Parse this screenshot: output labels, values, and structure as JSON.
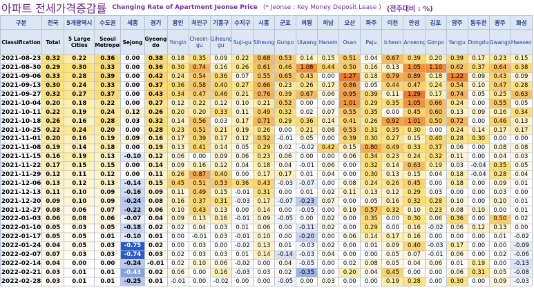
{
  "title": {
    "ko": "아파트 전세가격증감률",
    "en": "Changing Rate of Apartment Jeonse Price",
    "note": "(* Jeonse : Key Money Deposit Lease )",
    "unit": "(전주대비 : %)"
  },
  "table": {
    "header_ko": [
      "구분",
      "전국",
      "5개광역시",
      "수도권",
      "세종",
      "경기",
      "용인",
      "처인구",
      "기흥구",
      "수지구",
      "시흥",
      "군포",
      "의왕",
      "하남",
      "오산",
      "파주",
      "이천",
      "안성",
      "김포",
      "양주",
      "동두천",
      "광주",
      "화성"
    ],
    "header_en": [
      "Classification",
      "Total",
      "5 Large Cities",
      "Seoul Metropolitan",
      "Sejong",
      "Gyeonggi-do",
      "Yongin",
      "Cheoin-gu",
      "Giheung-gu",
      "Suji-gu",
      "Siheung",
      "Gunpo",
      "Uiwang",
      "Hanam",
      "Osan",
      "Paju",
      "Icheon",
      "Anseong",
      "Gimpo",
      "Yangju",
      "Dongducheon",
      "Gwangju",
      "Hwaseong"
    ],
    "rows": [
      [
        "2021-08-23",
        "0.32",
        "0.22",
        "0.36",
        "0.00",
        "0.38",
        "0.18",
        "0.35",
        "0.09",
        "0.22",
        "0.68",
        "0.53",
        "0.14",
        "0.15",
        "0.51",
        "0.04",
        "0.67",
        "0.39",
        "0.20",
        "0.39",
        "0.17",
        "0.23",
        "0.15"
      ],
      [
        "2021-08-30",
        "0.29",
        "0.30",
        "0.33",
        "0.00",
        "0.36",
        "0.30",
        "0.74",
        "0.16",
        "0.26",
        "0.61",
        "0.46",
        "1.08",
        "0.44",
        "0.50",
        "0.16",
        "0.13",
        "1.05",
        "1.10",
        "0.62",
        "0.37",
        "0.64",
        "0.38"
      ],
      [
        "2021-09-06",
        "0.33",
        "0.28",
        "0.39",
        "0.00",
        "0.42",
        "0.24",
        "0.54",
        "0.36",
        "0.07",
        "0.55",
        "0.65",
        "0.43",
        "0.00",
        "1.27",
        "0.18",
        "0.79",
        "0.89",
        "0.18",
        "1.22",
        "0.09",
        "0.43",
        "0.09"
      ],
      [
        "2021-09-13",
        "0.30",
        "0.24",
        "0.33",
        "0.00",
        "0.37",
        "0.36",
        "0.58",
        "0.40",
        "0.27",
        "0.66",
        "0.23",
        "0.26",
        "0.17",
        "0.86",
        "0.05",
        "0.44",
        "0.47",
        "0.24",
        "0.54",
        "0.10",
        "0.47",
        "0.28"
      ],
      [
        "2021-09-27",
        "0.32",
        "0.27",
        "0.37",
        "0.00",
        "0.43",
        "0.34",
        "0.47",
        "0.46",
        "0.21",
        "0.76",
        "0.39",
        "0.67",
        "0.06",
        "0.95",
        "0.39",
        "0.11",
        "1.29",
        "0.17",
        "0.74",
        "0.05",
        "0.25",
        "0.63"
      ],
      [
        "2021-10-04",
        "0.20",
        "0.18",
        "0.22",
        "0.00",
        "0.27",
        "0.12",
        "0.22",
        "0.12",
        "0.10",
        "0.21",
        "0.52",
        "0.00",
        "0.00",
        "1.01",
        "0.29",
        "0.35",
        "1.05",
        "0.66",
        "0.24",
        "0.00",
        "0.55",
        "0.05"
      ],
      [
        "2021-10-11",
        "0.22",
        "0.19",
        "0.24",
        "0.12",
        "0.26",
        "0.20",
        "0.20",
        "0.33",
        "0.11",
        "0.49",
        "0.32",
        "0.02",
        "0.07",
        "0.55",
        "0.35",
        "0.00",
        "0.45",
        "0.60",
        "0.13",
        "0.09",
        "0.16",
        "0.34"
      ],
      [
        "2021-10-18",
        "0.26",
        "0.16",
        "0.28",
        "0.03",
        "0.32",
        "0.14",
        "0.56",
        "0.03",
        "0.17",
        "0.71",
        "0.29",
        "0.36",
        "0.14",
        "0.41",
        "0.26",
        "0.92",
        "1.01",
        "0.50",
        "0.72",
        "0.00",
        "0.46",
        "0.13"
      ],
      [
        "2021-10-25",
        "0.22",
        "0.24",
        "0.20",
        "0.00",
        "0.28",
        "0.23",
        "0.51",
        "0.21",
        "0.19",
        "0.26",
        "0.00",
        "0.21",
        "0.08",
        "0.53",
        "0.31",
        "0.35",
        "0.30",
        "0.00",
        "0.24",
        "0.14",
        "0.17",
        "0.17"
      ],
      [
        "2021-11-01",
        "0.20",
        "0.16",
        "0.19",
        "0.09",
        "0.16",
        "0.17",
        "0.39",
        "0.17",
        "0.12",
        "0.52",
        "-0.01",
        "0.05",
        "0.00",
        "0.39",
        "0.30",
        "0.27",
        "0.15",
        "0.40",
        "0.28",
        "0.30",
        "0.00",
        "0.00"
      ],
      [
        "2021-11-08",
        "0.19",
        "0.14",
        "0.18",
        "0.00",
        "0.19",
        "0.13",
        "0.41",
        "0.14",
        "0.05",
        "0.29",
        "0.02",
        "-0.02",
        "0.42",
        "0.15",
        "0.80",
        "0.49",
        "0.33",
        "0.37",
        "0.06",
        "0.00",
        "0.08",
        "0.08"
      ],
      [
        "2021-11-15",
        "0.16",
        "0.19",
        "0.13",
        "-0.10",
        "0.12",
        "0.06",
        "0.00",
        "0.09",
        "0.06",
        "0.23",
        "0.06",
        "0.00",
        "0.00",
        "0.06",
        "0.34",
        "0.23",
        "0.24",
        "0.32",
        "0.11",
        "0.00",
        "0.04",
        "0.03"
      ],
      [
        "2021-11-22",
        "0.17",
        "0.15",
        "0.15",
        "0.00",
        "0.14",
        "0.09",
        "0.16",
        "0.12",
        "0.04",
        "0.18",
        "0.04",
        "-0.01",
        "0.06",
        "0.00",
        "0.32",
        "0.14",
        "0.63",
        "0.19",
        "0.03",
        "-0.04",
        "0.35",
        "0.05"
      ],
      [
        "2021-11-29",
        "0.12",
        "0.11",
        "0.12",
        "0.00",
        "0.11",
        "0.26",
        "0.87",
        "0.40",
        "0.00",
        "0.17",
        "0.17",
        "0.01",
        "0.04",
        "0.00",
        "0.30",
        "0.13",
        "0.15",
        "0.04",
        "0.18",
        "-0.04",
        "0.28",
        "0.04"
      ],
      [
        "2021-12-06",
        "0.13",
        "0.12",
        "0.13",
        "-0.14",
        "0.15",
        "0.45",
        "0.51",
        "0.53",
        "0.36",
        "0.43",
        "-0.03",
        "-0.07",
        "0.00",
        "0.08",
        "0.24",
        "0.26",
        "0.45",
        "0.00",
        "0.18",
        "0.00",
        "0.09",
        "0.01"
      ],
      [
        "2021-12-13",
        "0.11",
        "0.10",
        "0.09",
        "-0.16",
        "0.09",
        "0.11",
        "0.49",
        "0.15",
        "-0.01",
        "0.31",
        "0.00",
        "0.01",
        "0.02",
        "0.11",
        "0.13",
        "0.12",
        "0.29",
        "0.03",
        "0.00",
        "0.00",
        "0.03",
        "0.00"
      ],
      [
        "2021-12-20",
        "0.09",
        "0.10",
        "0.09",
        "-0.24",
        "0.08",
        "0.16",
        "0.37",
        "0.31",
        "-0.03",
        "0.17",
        "-0.07",
        "-0.23",
        "0.07",
        "0.00",
        "0.05",
        "0.16",
        "0.32",
        "0.28",
        "0.10",
        "0.00",
        "0.10",
        "0.01"
      ],
      [
        "2021-12-27",
        "0.08",
        "0.06",
        "0.07",
        "-0.22",
        "0.06",
        "0.10",
        "0.43",
        "0.13",
        "0.00",
        "0.14",
        "0.00",
        "-0.05",
        "0.00",
        "0.10",
        "0.57",
        "0.32",
        "0.10",
        "0.23",
        "0.08",
        "0.10",
        "0.00",
        "0.01"
      ],
      [
        "2022-01-03",
        "0.06",
        "0.08",
        "0.06",
        "-0.07",
        "0.04",
        "0.09",
        "0.13",
        "0.16",
        "-0.01",
        "0.09",
        "-0.05",
        "0.00",
        "0.02",
        "0.00",
        "0.35",
        "0.00",
        "0.30",
        "0.06",
        "0.36",
        "0.00",
        "0.50",
        "0.02"
      ],
      [
        "2022-01-10",
        "0.05",
        "0.03",
        "0.05",
        "-0.18",
        "0.02",
        "0.02",
        "0.04",
        "0.03",
        "0.01",
        "0.06",
        "0.00",
        "-0.11",
        "0.02",
        "0.00",
        "0.29",
        "0.00",
        "0.16",
        "-0.02",
        "0.06",
        "0.12",
        "0.13",
        "0.00"
      ],
      [
        "2022-01-17",
        "0.05",
        "0.05",
        "0.01",
        "-0.10",
        "0.01",
        "0.00",
        "-0.01",
        "0.03",
        "-0.01",
        "0.10",
        "0.00",
        "-0.20",
        "0.00",
        "0.06",
        "0.14",
        "0.17",
        "0.16",
        "0.00",
        "0.00",
        "0.00",
        "0.01",
        "-0.02"
      ],
      [
        "2022-01-24",
        "0.04",
        "0.05",
        "0.03",
        "-0.75",
        "0.02",
        "0.00",
        "0.03",
        "0.00",
        "-0.02",
        "0.13",
        "0.01",
        "-0.03",
        "0.02",
        "0.00",
        "0.01",
        "0.09",
        "0.40",
        "-0.03",
        "0.17",
        "0.00",
        "0.00",
        "-0.09"
      ],
      [
        "2022-02-07",
        "0.07",
        "0.03",
        "0.03",
        "-0.74",
        "0.03",
        "0.02",
        "0.03",
        "0.03",
        "0.01",
        "0.14",
        "-0.14",
        "-0.03",
        "0.04",
        "0.00",
        "0.00",
        "0.05",
        "0.07",
        "-0.01",
        "0.06",
        "0.00",
        "0.02",
        "-0.06"
      ],
      [
        "2022-02-14",
        "0.04",
        "0.00",
        "0.00",
        "-0.24",
        "-0.01",
        "0.02",
        "0.10",
        "0.06",
        "-0.02",
        "0.00",
        "0.04",
        "-0.05",
        "0.00",
        "0.02",
        "0.08",
        "0.05",
        "0.04",
        "0.06",
        "0.01",
        "0.19",
        "0.00",
        "-0.13"
      ],
      [
        "2022-02-21",
        "0.03",
        "0.01",
        "0.01",
        "-0.43",
        "0.02",
        "0.06",
        "0.00",
        "0.16",
        "-0.03",
        "0.03",
        "0.02",
        "-0.35",
        "0.00",
        "0.20",
        "0.04",
        "0.45",
        "0.00",
        "0.00",
        "0.06",
        "0.31",
        "0.05",
        "-0.08"
      ],
      [
        "2022-02-28",
        "0.03",
        "0.01",
        "0.01",
        "-0.25",
        "0.01",
        "-0.01",
        "0.00",
        "-0.02",
        "0.00",
        "0.00",
        "-0.05",
        "0.00",
        "0.03",
        "0.00",
        "0.00",
        "0.19",
        "0.28",
        "0.00",
        "0.30",
        "0.00",
        "0.09",
        "-0.03"
      ]
    ]
  }
}
